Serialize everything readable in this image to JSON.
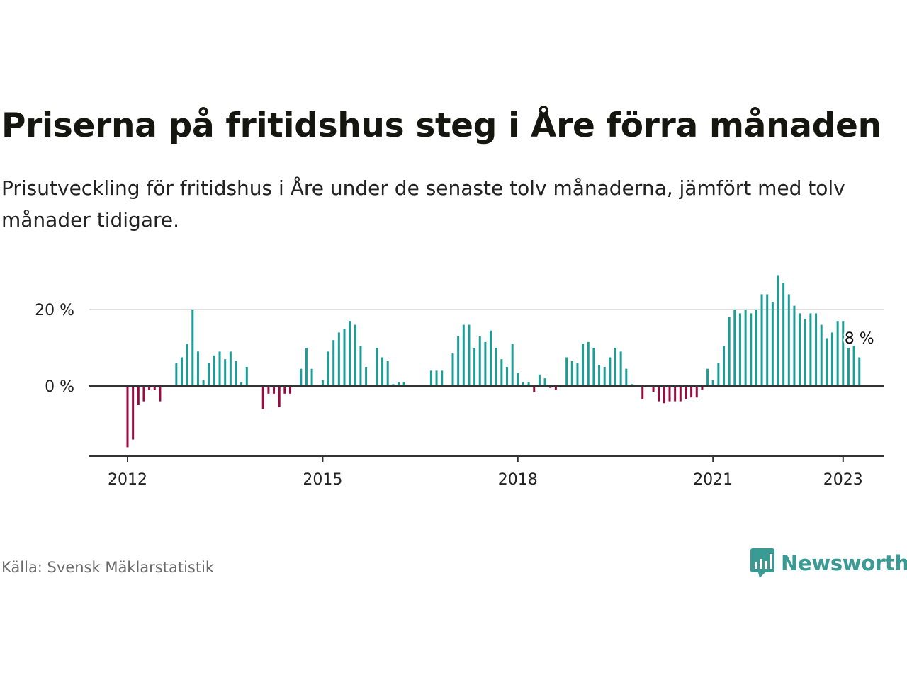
{
  "title": "Priserna på fritidshus steg i Åre förra månaden",
  "subtitle": "Prisutveckling för fritidshus i Åre under de senaste tolv månaderna, jämfört med tolv månader tidigare.",
  "source": "Källa: Svensk Mäklarstatistik",
  "brand": {
    "name": "Newsworthy",
    "icon": "newsworthy-logo-icon"
  },
  "colors": {
    "positive": "#1a9e96",
    "negative": "#990a40",
    "axis": "#333333",
    "grid": "#dddddd",
    "brand": "#3a9a94"
  },
  "chart_data": {
    "type": "bar",
    "title": "Priserna på fritidshus steg i Åre förra månaden",
    "x_ticks": [
      "2012",
      "2015",
      "2018",
      "2021",
      "2023"
    ],
    "y_ticks": [
      "0 %",
      "20 %"
    ],
    "y_tick_values": [
      0,
      20
    ],
    "ylim": [
      -18,
      31
    ],
    "grid": true,
    "end_label": "8 %",
    "start": "2012-01",
    "values": [
      -16,
      -14,
      -5,
      -4,
      -1,
      -1,
      -4,
      0,
      0,
      6,
      7.5,
      11,
      20,
      9,
      1.5,
      6,
      8,
      9,
      7,
      9,
      6.5,
      1,
      5,
      0,
      0,
      -6,
      -2,
      -2,
      -5.5,
      -2,
      -2,
      0,
      4.5,
      10,
      4.5,
      0,
      1.5,
      9,
      12,
      14,
      15,
      17,
      16,
      10.5,
      5,
      0,
      10,
      7.5,
      6.5,
      0.5,
      1,
      1,
      0,
      0,
      0,
      0,
      4,
      4,
      4,
      0,
      8.5,
      13,
      16,
      16,
      10,
      13,
      11.5,
      14.5,
      10,
      7,
      5,
      11,
      3.5,
      1,
      1,
      -1.5,
      3,
      2,
      -0.5,
      -1,
      0,
      7.5,
      6.5,
      6,
      11,
      11.5,
      10,
      5.5,
      5,
      7.5,
      10,
      9,
      4.5,
      0.5,
      0,
      -3.5,
      0,
      -1.5,
      -4,
      -4.5,
      -4,
      -4,
      -4,
      -3.5,
      -3,
      -3,
      -1,
      4.5,
      1.5,
      6,
      10.5,
      18,
      20,
      19,
      20,
      19,
      20,
      24,
      24,
      22,
      29,
      27,
      24,
      21,
      19,
      17.5,
      19,
      19,
      16,
      12.5,
      14,
      17,
      17,
      10,
      10.5,
      7.5
    ]
  }
}
